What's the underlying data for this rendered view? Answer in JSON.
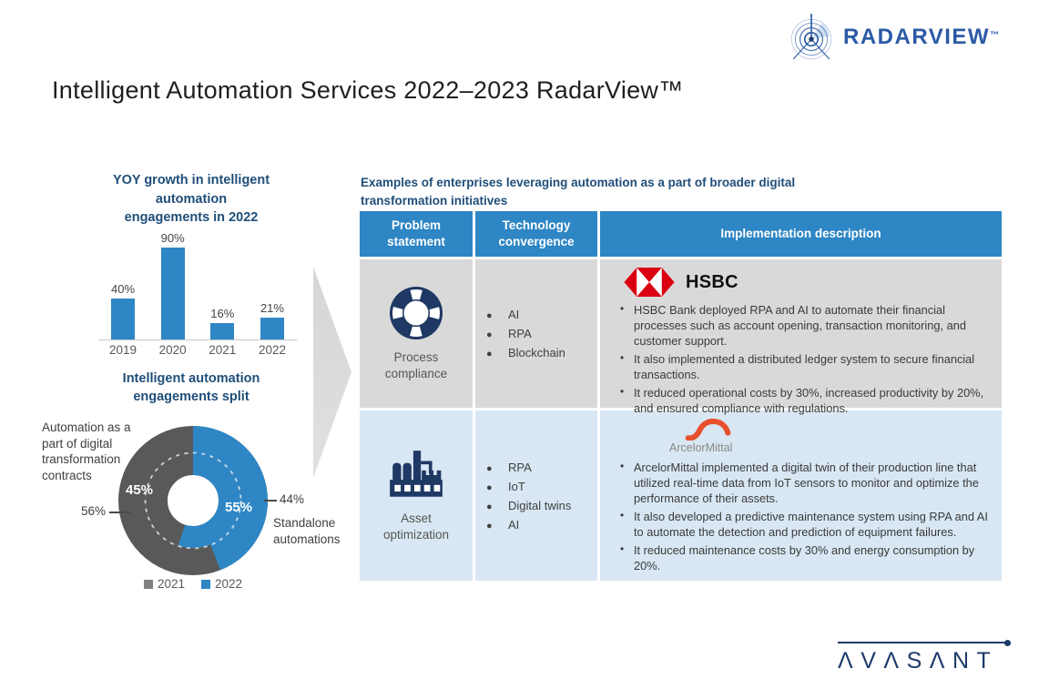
{
  "title": "Intelligent Automation Services 2022–2023 RadarView™",
  "brand": {
    "radarview": "RADARVIEW",
    "radarview_tm": "™",
    "avasant": "ΛVΛSΛNT"
  },
  "colors": {
    "heading_navy": "#1F4E79",
    "chart_blue": "#2E86C5",
    "chart_gray": "#595959",
    "table_header_blue": "#2E86C4",
    "row1_bg": "#D9D9D9",
    "row2_bg": "#D8E7F3",
    "icon_navy": "#1F3864",
    "hsbc_red": "#DB0011",
    "arcelor_orange": "#E8502D",
    "brand_blue": "#2B5AA6",
    "avasant_navy": "#1E3A6B"
  },
  "chart_data": [
    {
      "id": "yoy_growth",
      "type": "bar",
      "title": "YOY growth in intelligent\nautomation\nengagements in 2022",
      "categories": [
        "2019",
        "2020",
        "2021",
        "2022"
      ],
      "values": [
        40,
        90,
        16,
        21
      ],
      "value_labels": [
        "40%",
        "90%",
        "16%",
        "21%"
      ],
      "unit": "%",
      "ylim": [
        0,
        100
      ],
      "grid": false,
      "bar_color": "#2E86C5"
    },
    {
      "id": "engagements_split",
      "type": "donut",
      "title": "Intelligent automation\nengagements split",
      "rings": [
        {
          "year": "2021",
          "position": "inner",
          "segments": [
            {
              "label": "Automation as a part of digital transformation contracts",
              "value": 45,
              "color": "#595959"
            },
            {
              "label": "Standalone automations",
              "value": 55,
              "color": "#2E86C5"
            }
          ]
        },
        {
          "year": "2022",
          "position": "outer",
          "segments": [
            {
              "label": "Automation as a part of digital transformation contracts",
              "value": 56,
              "color": "#595959"
            },
            {
              "label": "Standalone automations",
              "value": 44,
              "color": "#2E86C5"
            }
          ]
        }
      ],
      "legend": [
        {
          "label": "2021",
          "color": "#7F7F7F"
        },
        {
          "label": "2022",
          "color": "#2E86C5"
        }
      ],
      "legend_position": "bottom",
      "callouts": {
        "inner_left": "45%",
        "inner_right": "55%",
        "outer_left": "56%",
        "outer_right": "44%",
        "left_label": "Automation as a\npart of digital\ntransformation\ncontracts",
        "right_label": "Standalone\nautomations"
      }
    }
  ],
  "table": {
    "heading": "Examples of enterprises leveraging automation as a part of broader digital\ntransformation initiatives",
    "columns": [
      "Problem statement",
      "Technology convergence",
      "Implementation description"
    ],
    "rows": [
      {
        "problem": "Process compliance",
        "icon": "lifebuoy",
        "technologies": [
          "AI",
          "RPA",
          "Blockchain"
        ],
        "company": "HSBC",
        "bullets": [
          "HSBC Bank deployed RPA and AI to automate their financial processes such as account opening, transaction monitoring, and customer support.",
          "It also implemented a distributed ledger system to secure financial transactions.",
          "It reduced operational costs by 30%, increased productivity by 20%, and ensured compliance with regulations."
        ]
      },
      {
        "problem": "Asset optimization",
        "icon": "factory",
        "technologies": [
          "RPA",
          "IoT",
          "Digital twins",
          "AI"
        ],
        "company": "ArcelorMittal",
        "bullets": [
          "ArcelorMittal implemented a digital twin of their production line that utilized real-time data from IoT sensors to monitor and optimize the performance of their assets.",
          "It also developed a predictive maintenance system using RPA and AI to automate the detection and prediction of equipment failures.",
          "It reduced maintenance costs by 30% and energy consumption by 20%."
        ]
      }
    ]
  }
}
